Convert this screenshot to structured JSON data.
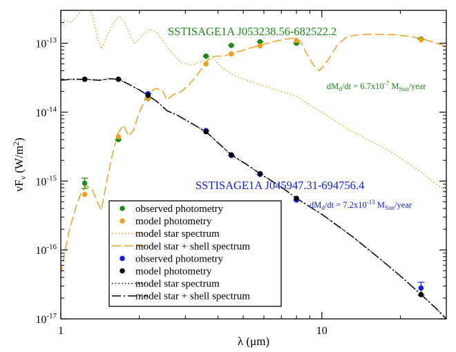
{
  "chart_data": {
    "type": "line",
    "x_scale": "log",
    "y_scale": "log",
    "xlim": [
      1,
      30
    ],
    "ylim": [
      1e-17,
      3e-13
    ],
    "xlabel": "λ (μm)",
    "ylabel": "νF_ν (W/m^2)",
    "x_ticks": [
      {
        "value": 1,
        "label": "1"
      },
      {
        "value": 10,
        "label": "10"
      }
    ],
    "y_ticks": [
      {
        "value": 1e-17,
        "base": "10",
        "exp": "-17"
      },
      {
        "value": 1e-16,
        "base": "10",
        "exp": "-16"
      },
      {
        "value": 1e-15,
        "base": "10",
        "exp": "-15"
      },
      {
        "value": 1e-14,
        "base": "10",
        "exp": "-14"
      },
      {
        "value": 1e-13,
        "base": "10",
        "exp": "-13"
      }
    ],
    "sources": [
      {
        "name": "SSTISAGE1A J053238.56-682522.2",
        "color": "#1a8a1a",
        "model_color": "#f0a020",
        "annotation": {
          "pre": "dM",
          "sub1": "d",
          "mid": "/dt = 6.7x10",
          "sup": "-7",
          "mid2": " M",
          "sub2": "Sun",
          "post": "/year"
        },
        "observed": [
          {
            "x": 1.235,
            "y": 9.3e-16,
            "err_lo": 7.8e-16,
            "err_hi": 1.1e-15
          },
          {
            "x": 1.662,
            "y": 4e-15
          },
          {
            "x": 2.159,
            "y": 1.58e-14
          },
          {
            "x": 3.6,
            "y": 6.5e-14
          },
          {
            "x": 4.5,
            "y": 9.3e-14
          },
          {
            "x": 5.8,
            "y": 1.05e-13
          },
          {
            "x": 8.0,
            "y": 1e-13
          },
          {
            "x": 24.0,
            "y": 1.15e-13
          }
        ],
        "model_photometry": [
          {
            "x": 1.235,
            "y": 6.4e-16
          },
          {
            "x": 1.662,
            "y": 4.4e-15
          },
          {
            "x": 2.159,
            "y": 1.6e-14
          },
          {
            "x": 3.6,
            "y": 5e-14
          },
          {
            "x": 4.5,
            "y": 7e-14
          },
          {
            "x": 5.8,
            "y": 9.2e-14
          },
          {
            "x": 8.0,
            "y": 1.1e-13
          },
          {
            "x": 24.0,
            "y": 1.12e-13
          }
        ],
        "model_star_spectrum": [
          [
            1.0,
            2.2e-13
          ],
          [
            1.1,
            2e-13
          ],
          [
            1.2,
            3e-13
          ],
          [
            1.26,
            3.8e-13
          ],
          [
            1.32,
            2.6e-13
          ],
          [
            1.38,
            1.2e-13
          ],
          [
            1.43,
            8.3e-14
          ],
          [
            1.5,
            1.25e-13
          ],
          [
            1.6,
            2e-13
          ],
          [
            1.68,
            2.5e-13
          ],
          [
            1.76,
            2e-13
          ],
          [
            1.86,
            1.2e-13
          ],
          [
            1.93,
            1e-13
          ],
          [
            2.05,
            1.3e-13
          ],
          [
            2.2,
            1.6e-13
          ],
          [
            2.35,
            1.4e-13
          ],
          [
            2.6,
            8e-14
          ],
          [
            2.9,
            5.2e-14
          ],
          [
            3.2,
            4.8e-14
          ],
          [
            3.5,
            5.5e-14
          ],
          [
            3.8,
            6.2e-14
          ],
          [
            4.1,
            4.6e-14
          ],
          [
            4.6,
            3.4e-14
          ],
          [
            5.3,
            2.8e-14
          ],
          [
            6.0,
            2.4e-14
          ],
          [
            7.0,
            2e-14
          ],
          [
            8.0,
            1.7e-14
          ],
          [
            9.0,
            1.25e-14
          ],
          [
            10.0,
            1e-14
          ],
          [
            11.5,
            7e-15
          ],
          [
            13.0,
            5.3e-15
          ],
          [
            15.0,
            4e-15
          ],
          [
            18.0,
            2.8e-15
          ],
          [
            21.0,
            1.9e-15
          ],
          [
            24.0,
            1.35e-15
          ],
          [
            27.0,
            9.5e-16
          ],
          [
            30.0,
            7e-16
          ]
        ],
        "model_star_shell_spectrum": [
          [
            1.0,
            4.5e-17
          ],
          [
            1.04,
            1e-16
          ],
          [
            1.08,
            2e-16
          ],
          [
            1.14,
            4e-16
          ],
          [
            1.2,
            7e-16
          ],
          [
            1.26,
            8.5e-16
          ],
          [
            1.32,
            7.5e-16
          ],
          [
            1.38,
            5e-16
          ],
          [
            1.43,
            3.8e-16
          ],
          [
            1.5,
            1e-15
          ],
          [
            1.58,
            2.5e-15
          ],
          [
            1.66,
            5e-15
          ],
          [
            1.74,
            6.5e-15
          ],
          [
            1.82,
            4.5e-15
          ],
          [
            1.9,
            5.5e-15
          ],
          [
            2.0,
            1e-14
          ],
          [
            2.15,
            1.8e-14
          ],
          [
            2.3,
            2.2e-14
          ],
          [
            2.45,
            2.1e-14
          ],
          [
            2.55,
            1.5e-14
          ],
          [
            2.7,
            1.8e-14
          ],
          [
            2.9,
            2e-14
          ],
          [
            3.1,
            2.5e-14
          ],
          [
            3.3,
            3.3e-14
          ],
          [
            3.5,
            4.5e-14
          ],
          [
            3.7,
            6e-14
          ],
          [
            3.9,
            6.5e-14
          ],
          [
            4.2,
            6.5e-14
          ],
          [
            4.6,
            7.2e-14
          ],
          [
            5.2,
            8.3e-14
          ],
          [
            5.8,
            9.3e-14
          ],
          [
            6.5,
            1.05e-13
          ],
          [
            7.3,
            1.15e-13
          ],
          [
            7.9,
            1.2e-13
          ],
          [
            8.3,
            1.05e-13
          ],
          [
            8.8,
            6.8e-14
          ],
          [
            9.3,
            4.8e-14
          ],
          [
            9.8,
            4e-14
          ],
          [
            10.5,
            5.5e-14
          ],
          [
            11.5,
            9.5e-14
          ],
          [
            12.5,
            1.25e-13
          ],
          [
            14.0,
            1.33e-13
          ],
          [
            16.0,
            1.35e-13
          ],
          [
            19.0,
            1.33e-13
          ],
          [
            22.0,
            1.25e-13
          ],
          [
            25.0,
            1.12e-13
          ],
          [
            28.0,
            9.8e-14
          ],
          [
            30.0,
            9e-14
          ]
        ]
      },
      {
        "name": "SSTISAGE1A J045947.31-694756.4",
        "color": "#1020e0",
        "model_color": "#000000",
        "annotation": {
          "pre": "dM",
          "sub1": "d",
          "mid": "/dt = 7.2x10",
          "sup": "-13",
          "mid2": " M",
          "sub2": "Sun",
          "post": "/year"
        },
        "observed": [
          {
            "x": 1.235,
            "y": 3e-14
          },
          {
            "x": 1.662,
            "y": 3e-14
          },
          {
            "x": 2.159,
            "y": 1.85e-14
          },
          {
            "x": 3.6,
            "y": 5.4e-15
          },
          {
            "x": 4.5,
            "y": 2.35e-15
          },
          {
            "x": 5.8,
            "y": 1.25e-15
          },
          {
            "x": 8.0,
            "y": 5.3e-16
          },
          {
            "x": 24.0,
            "y": 2.8e-17,
            "err_lo": 2.2e-17,
            "err_hi": 3.4e-17
          }
        ],
        "model_photometry": [
          {
            "x": 1.235,
            "y": 3e-14
          },
          {
            "x": 1.662,
            "y": 3e-14
          },
          {
            "x": 2.159,
            "y": 1.75e-14
          },
          {
            "x": 3.6,
            "y": 5.2e-15
          },
          {
            "x": 4.5,
            "y": 2.4e-15
          },
          {
            "x": 5.8,
            "y": 1.28e-15
          },
          {
            "x": 8.0,
            "y": 5.6e-16
          },
          {
            "x": 24.0,
            "y": 2.25e-17
          }
        ],
        "model_star_spectrum": [
          [
            1.0,
            2.9e-14
          ],
          [
            1.1,
            3e-14
          ],
          [
            1.235,
            3e-14
          ],
          [
            1.4,
            2.9e-14
          ],
          [
            1.55,
            3.05e-14
          ],
          [
            1.662,
            3e-14
          ],
          [
            1.8,
            2.6e-14
          ],
          [
            2.0,
            2.1e-14
          ],
          [
            2.159,
            1.75e-14
          ],
          [
            2.35,
            1.4e-14
          ],
          [
            2.55,
            1.05e-14
          ],
          [
            2.8,
            9e-15
          ],
          [
            3.1,
            7.2e-15
          ],
          [
            3.6,
            5.2e-15
          ],
          [
            4.0,
            3.6e-15
          ],
          [
            4.5,
            2.4e-15
          ],
          [
            5.2,
            1.7e-15
          ],
          [
            5.8,
            1.28e-15
          ],
          [
            7.0,
            8.2e-16
          ],
          [
            8.0,
            5.6e-16
          ],
          [
            10.0,
            3.3e-16
          ],
          [
            13.0,
            1.6e-16
          ],
          [
            16.0,
            8.5e-17
          ],
          [
            20.0,
            4.2e-17
          ],
          [
            24.0,
            2.25e-17
          ],
          [
            27.0,
            1.5e-17
          ],
          [
            30.0,
            1e-17
          ]
        ],
        "model_star_shell_spectrum": [
          [
            1.0,
            2.9e-14
          ],
          [
            1.1,
            3e-14
          ],
          [
            1.235,
            3e-14
          ],
          [
            1.4,
            2.9e-14
          ],
          [
            1.55,
            3.05e-14
          ],
          [
            1.662,
            3e-14
          ],
          [
            1.8,
            2.6e-14
          ],
          [
            2.0,
            2.1e-14
          ],
          [
            2.159,
            1.75e-14
          ],
          [
            2.35,
            1.4e-14
          ],
          [
            2.55,
            1.05e-14
          ],
          [
            2.8,
            9e-15
          ],
          [
            3.1,
            7.2e-15
          ],
          [
            3.6,
            5.2e-15
          ],
          [
            4.0,
            3.6e-15
          ],
          [
            4.5,
            2.4e-15
          ],
          [
            5.2,
            1.7e-15
          ],
          [
            5.8,
            1.28e-15
          ],
          [
            7.0,
            8.2e-16
          ],
          [
            8.0,
            5.6e-16
          ],
          [
            10.0,
            3.3e-16
          ],
          [
            13.0,
            1.6e-16
          ],
          [
            16.0,
            8.5e-17
          ],
          [
            20.0,
            4.2e-17
          ],
          [
            24.0,
            2.25e-17
          ],
          [
            27.0,
            1.5e-17
          ],
          [
            30.0,
            1e-17
          ]
        ]
      }
    ],
    "legend": {
      "placement": "bottom-left",
      "entries": [
        {
          "label": "observed photometry",
          "kind": "marker",
          "color": "#1a8a1a"
        },
        {
          "label": "model photometry",
          "kind": "marker",
          "color": "#f0a020"
        },
        {
          "label": "model star spectrum",
          "kind": "dotted",
          "color": "#f0a020"
        },
        {
          "label": "model star + shell spectrum",
          "kind": "dashed",
          "color": "#f0a020"
        },
        {
          "label": "observed photometry",
          "kind": "marker",
          "color": "#1020e0"
        },
        {
          "label": "model photometry",
          "kind": "marker",
          "color": "#000000"
        },
        {
          "label": "model star spectrum",
          "kind": "dotted",
          "color": "#000000"
        },
        {
          "label": "model star + shell spectrum",
          "kind": "dashdot",
          "color": "#000000"
        }
      ]
    }
  }
}
